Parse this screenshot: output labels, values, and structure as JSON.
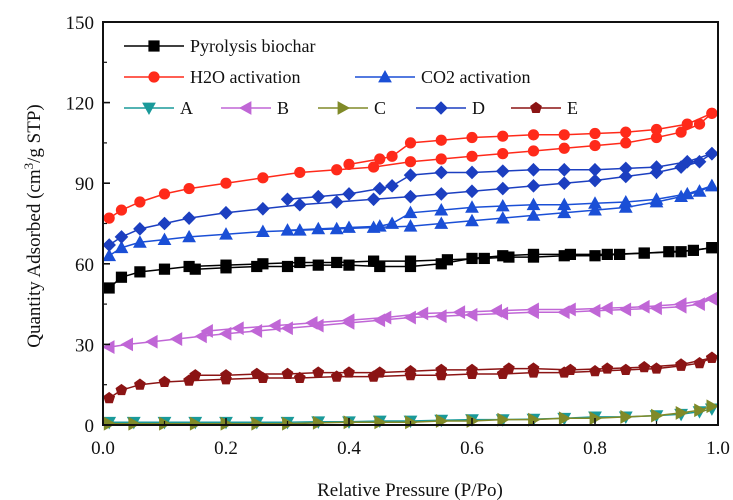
{
  "chart_data": {
    "type": "line",
    "title": "",
    "xlabel": "Relative Pressure (P/Po)",
    "ylabel_main": "Quantity Adsorbed (cm",
    "ylabel_sup": "3",
    "ylabel_tail": "/g STP)",
    "xlim": [
      0.0,
      1.0
    ],
    "ylim": [
      0,
      150
    ],
    "xticks": [
      "0.0",
      "0.2",
      "0.4",
      "0.6",
      "0.8",
      "1.0"
    ],
    "yticks": [
      "0",
      "30",
      "60",
      "90",
      "120",
      "150"
    ],
    "grid": false,
    "legend_position": "top-left",
    "series": [
      {
        "name": "Pyrolysis biochar",
        "color": "#000000",
        "marker": "square",
        "adsorption": [
          [
            0.01,
            51
          ],
          [
            0.03,
            55
          ],
          [
            0.06,
            57
          ],
          [
            0.1,
            58
          ],
          [
            0.14,
            59
          ],
          [
            0.2,
            59.5
          ],
          [
            0.26,
            60
          ],
          [
            0.32,
            60.5
          ],
          [
            0.38,
            60.5
          ],
          [
            0.44,
            61
          ],
          [
            0.5,
            61
          ],
          [
            0.56,
            61.5
          ],
          [
            0.62,
            62
          ],
          [
            0.66,
            62.5
          ],
          [
            0.7,
            62.5
          ],
          [
            0.75,
            63
          ],
          [
            0.8,
            63
          ],
          [
            0.84,
            63.5
          ],
          [
            0.88,
            64
          ],
          [
            0.92,
            64.5
          ],
          [
            0.96,
            65
          ],
          [
            0.99,
            66
          ]
        ],
        "desorption": [
          [
            0.99,
            66
          ],
          [
            0.94,
            64.5
          ],
          [
            0.88,
            64
          ],
          [
            0.82,
            63.5
          ],
          [
            0.76,
            63.5
          ],
          [
            0.7,
            63.5
          ],
          [
            0.65,
            63
          ],
          [
            0.6,
            62
          ],
          [
            0.55,
            60
          ],
          [
            0.5,
            59
          ],
          [
            0.45,
            59
          ],
          [
            0.4,
            59.5
          ],
          [
            0.35,
            59.5
          ],
          [
            0.3,
            59
          ],
          [
            0.25,
            59
          ],
          [
            0.2,
            58.5
          ],
          [
            0.15,
            58
          ]
        ]
      },
      {
        "name": "H2O activation",
        "color": "#ff2a1a",
        "marker": "circle",
        "adsorption": [
          [
            0.01,
            77
          ],
          [
            0.03,
            80
          ],
          [
            0.06,
            83
          ],
          [
            0.1,
            86
          ],
          [
            0.14,
            88
          ],
          [
            0.2,
            90
          ],
          [
            0.26,
            92
          ],
          [
            0.32,
            94
          ],
          [
            0.38,
            95
          ],
          [
            0.44,
            96
          ],
          [
            0.5,
            98
          ],
          [
            0.55,
            99
          ],
          [
            0.6,
            100
          ],
          [
            0.65,
            101
          ],
          [
            0.7,
            102
          ],
          [
            0.75,
            103
          ],
          [
            0.8,
            104
          ],
          [
            0.85,
            105
          ],
          [
            0.9,
            107
          ],
          [
            0.94,
            109
          ],
          [
            0.97,
            112
          ],
          [
            0.99,
            116
          ]
        ],
        "desorption": [
          [
            0.99,
            116
          ],
          [
            0.95,
            112
          ],
          [
            0.9,
            110
          ],
          [
            0.85,
            109
          ],
          [
            0.8,
            108.5
          ],
          [
            0.75,
            108
          ],
          [
            0.7,
            108
          ],
          [
            0.65,
            107.5
          ],
          [
            0.6,
            107
          ],
          [
            0.55,
            106
          ],
          [
            0.5,
            105
          ],
          [
            0.47,
            100
          ],
          [
            0.45,
            99
          ],
          [
            0.4,
            97
          ]
        ]
      },
      {
        "name": "CO2 activation",
        "color": "#1a4fd6",
        "marker": "triangle-up",
        "adsorption": [
          [
            0.01,
            63
          ],
          [
            0.03,
            66
          ],
          [
            0.06,
            68
          ],
          [
            0.1,
            69
          ],
          [
            0.14,
            70
          ],
          [
            0.2,
            71
          ],
          [
            0.26,
            72
          ],
          [
            0.32,
            72.5
          ],
          [
            0.38,
            73
          ],
          [
            0.44,
            73.5
          ],
          [
            0.5,
            74
          ],
          [
            0.55,
            75
          ],
          [
            0.6,
            76
          ],
          [
            0.65,
            77
          ],
          [
            0.7,
            78
          ],
          [
            0.75,
            79
          ],
          [
            0.8,
            80
          ],
          [
            0.85,
            81
          ],
          [
            0.9,
            83
          ],
          [
            0.94,
            85
          ],
          [
            0.97,
            87
          ],
          [
            0.99,
            89
          ]
        ],
        "desorption": [
          [
            0.99,
            89
          ],
          [
            0.95,
            86
          ],
          [
            0.9,
            84
          ],
          [
            0.85,
            83
          ],
          [
            0.8,
            82.5
          ],
          [
            0.75,
            82
          ],
          [
            0.7,
            82
          ],
          [
            0.65,
            81.5
          ],
          [
            0.6,
            81
          ],
          [
            0.55,
            80
          ],
          [
            0.5,
            79
          ],
          [
            0.47,
            75
          ],
          [
            0.45,
            74
          ],
          [
            0.4,
            73.5
          ],
          [
            0.35,
            73
          ],
          [
            0.3,
            72.5
          ]
        ]
      },
      {
        "name": "A",
        "color": "#1a9a9a",
        "marker": "triangle-down",
        "adsorption": [
          [
            0.01,
            1
          ],
          [
            0.05,
            1
          ],
          [
            0.1,
            1
          ],
          [
            0.15,
            1
          ],
          [
            0.2,
            1
          ],
          [
            0.25,
            1
          ],
          [
            0.3,
            1
          ],
          [
            0.35,
            1.2
          ],
          [
            0.4,
            1.2
          ],
          [
            0.45,
            1.5
          ],
          [
            0.5,
            1.5
          ],
          [
            0.55,
            1.8
          ],
          [
            0.6,
            2
          ],
          [
            0.65,
            2
          ],
          [
            0.7,
            2.2
          ],
          [
            0.75,
            2.5
          ],
          [
            0.8,
            3
          ],
          [
            0.85,
            3
          ],
          [
            0.9,
            3.5
          ],
          [
            0.94,
            4
          ],
          [
            0.97,
            5
          ],
          [
            0.99,
            6
          ]
        ],
        "desorption": []
      },
      {
        "name": "B",
        "color": "#c066d6",
        "marker": "triangle-left",
        "adsorption": [
          [
            0.01,
            29
          ],
          [
            0.04,
            30
          ],
          [
            0.08,
            31
          ],
          [
            0.12,
            32
          ],
          [
            0.16,
            33
          ],
          [
            0.2,
            34
          ],
          [
            0.25,
            35
          ],
          [
            0.3,
            36
          ],
          [
            0.35,
            37
          ],
          [
            0.4,
            38
          ],
          [
            0.45,
            39
          ],
          [
            0.5,
            40
          ],
          [
            0.55,
            40.5
          ],
          [
            0.6,
            41
          ],
          [
            0.65,
            41.5
          ],
          [
            0.7,
            42
          ],
          [
            0.75,
            42
          ],
          [
            0.8,
            42.5
          ],
          [
            0.85,
            43
          ],
          [
            0.9,
            43.5
          ],
          [
            0.94,
            44
          ],
          [
            0.97,
            45
          ],
          [
            0.99,
            47
          ]
        ],
        "desorption": [
          [
            0.99,
            47
          ],
          [
            0.94,
            45
          ],
          [
            0.88,
            44
          ],
          [
            0.82,
            43.5
          ],
          [
            0.76,
            43
          ],
          [
            0.7,
            43
          ],
          [
            0.64,
            42.5
          ],
          [
            0.58,
            42
          ],
          [
            0.52,
            41.5
          ],
          [
            0.46,
            40
          ],
          [
            0.4,
            39
          ],
          [
            0.34,
            38
          ],
          [
            0.28,
            37
          ],
          [
            0.22,
            36
          ],
          [
            0.17,
            35
          ]
        ]
      },
      {
        "name": "C",
        "color": "#808a28",
        "marker": "triangle-right",
        "adsorption": [
          [
            0.01,
            0.5
          ],
          [
            0.05,
            0.5
          ],
          [
            0.1,
            0.5
          ],
          [
            0.15,
            0.5
          ],
          [
            0.2,
            0.5
          ],
          [
            0.25,
            0.5
          ],
          [
            0.3,
            0.5
          ],
          [
            0.35,
            0.8
          ],
          [
            0.4,
            1
          ],
          [
            0.45,
            1
          ],
          [
            0.5,
            1
          ],
          [
            0.55,
            1.5
          ],
          [
            0.6,
            1.5
          ],
          [
            0.65,
            2
          ],
          [
            0.7,
            2
          ],
          [
            0.75,
            2.5
          ],
          [
            0.8,
            2.5
          ],
          [
            0.85,
            3
          ],
          [
            0.9,
            3.5
          ],
          [
            0.94,
            4.5
          ],
          [
            0.97,
            5.5
          ],
          [
            0.99,
            7
          ]
        ],
        "desorption": []
      },
      {
        "name": "D",
        "color": "#1c3fc0",
        "marker": "diamond",
        "adsorption": [
          [
            0.01,
            67
          ],
          [
            0.03,
            70
          ],
          [
            0.06,
            73
          ],
          [
            0.1,
            75
          ],
          [
            0.14,
            77
          ],
          [
            0.2,
            79
          ],
          [
            0.26,
            80.5
          ],
          [
            0.32,
            82
          ],
          [
            0.38,
            83
          ],
          [
            0.44,
            84
          ],
          [
            0.5,
            85
          ],
          [
            0.55,
            86
          ],
          [
            0.6,
            87
          ],
          [
            0.65,
            88
          ],
          [
            0.7,
            89
          ],
          [
            0.75,
            90
          ],
          [
            0.8,
            91
          ],
          [
            0.85,
            92.5
          ],
          [
            0.9,
            94
          ],
          [
            0.94,
            96
          ],
          [
            0.97,
            98
          ],
          [
            0.99,
            101
          ]
        ],
        "desorption": [
          [
            0.99,
            101
          ],
          [
            0.95,
            98
          ],
          [
            0.9,
            96
          ],
          [
            0.85,
            95.5
          ],
          [
            0.8,
            95
          ],
          [
            0.75,
            95
          ],
          [
            0.7,
            95
          ],
          [
            0.65,
            94.5
          ],
          [
            0.6,
            94
          ],
          [
            0.55,
            94
          ],
          [
            0.5,
            93
          ],
          [
            0.47,
            89
          ],
          [
            0.45,
            88
          ],
          [
            0.4,
            86
          ],
          [
            0.35,
            85
          ],
          [
            0.3,
            84
          ]
        ]
      },
      {
        "name": "E",
        "color": "#8b1414",
        "marker": "pentagon",
        "adsorption": [
          [
            0.01,
            10
          ],
          [
            0.03,
            13
          ],
          [
            0.06,
            15
          ],
          [
            0.1,
            16
          ],
          [
            0.14,
            16.5
          ],
          [
            0.2,
            17
          ],
          [
            0.26,
            17.5
          ],
          [
            0.32,
            17.5
          ],
          [
            0.38,
            18
          ],
          [
            0.44,
            18
          ],
          [
            0.5,
            18.5
          ],
          [
            0.55,
            18.5
          ],
          [
            0.6,
            19
          ],
          [
            0.65,
            19
          ],
          [
            0.7,
            19.5
          ],
          [
            0.75,
            19.5
          ],
          [
            0.8,
            20
          ],
          [
            0.85,
            20.5
          ],
          [
            0.9,
            21
          ],
          [
            0.94,
            22
          ],
          [
            0.97,
            23
          ],
          [
            0.99,
            25
          ]
        ],
        "desorption": [
          [
            0.99,
            25
          ],
          [
            0.94,
            22.5
          ],
          [
            0.88,
            21.5
          ],
          [
            0.82,
            21
          ],
          [
            0.76,
            20.5
          ],
          [
            0.7,
            21
          ],
          [
            0.66,
            21
          ],
          [
            0.6,
            20.5
          ],
          [
            0.55,
            20.5
          ],
          [
            0.5,
            20
          ],
          [
            0.45,
            19.5
          ],
          [
            0.4,
            19.5
          ],
          [
            0.35,
            19.5
          ],
          [
            0.3,
            19
          ],
          [
            0.25,
            19
          ],
          [
            0.2,
            18.5
          ],
          [
            0.15,
            18.5
          ]
        ]
      }
    ]
  }
}
